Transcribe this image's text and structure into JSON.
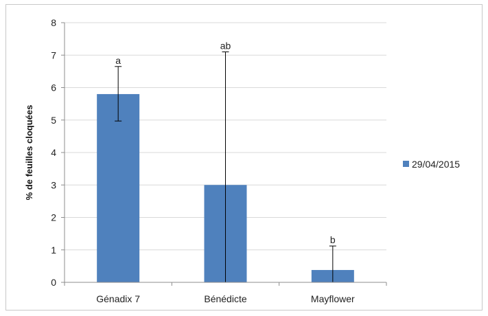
{
  "chart_data": {
    "type": "bar",
    "categories": [
      "Génadix 7",
      "Bénédicte",
      "Mayflower"
    ],
    "series": [
      {
        "name": "29/04/2015",
        "values": [
          5.8,
          3.0,
          0.38
        ],
        "error_upper": [
          6.65,
          7.1,
          1.12
        ],
        "error_lower": [
          4.97,
          0,
          0
        ],
        "color": "#4f81bd"
      }
    ],
    "significance_labels": [
      "a",
      "ab",
      "b"
    ],
    "ylabel": "% de feuilles cloquées",
    "ylim": [
      0,
      8
    ],
    "yticks": [
      0,
      1,
      2,
      3,
      4,
      5,
      6,
      7,
      8
    ],
    "grid": true,
    "legend_position": "right"
  }
}
